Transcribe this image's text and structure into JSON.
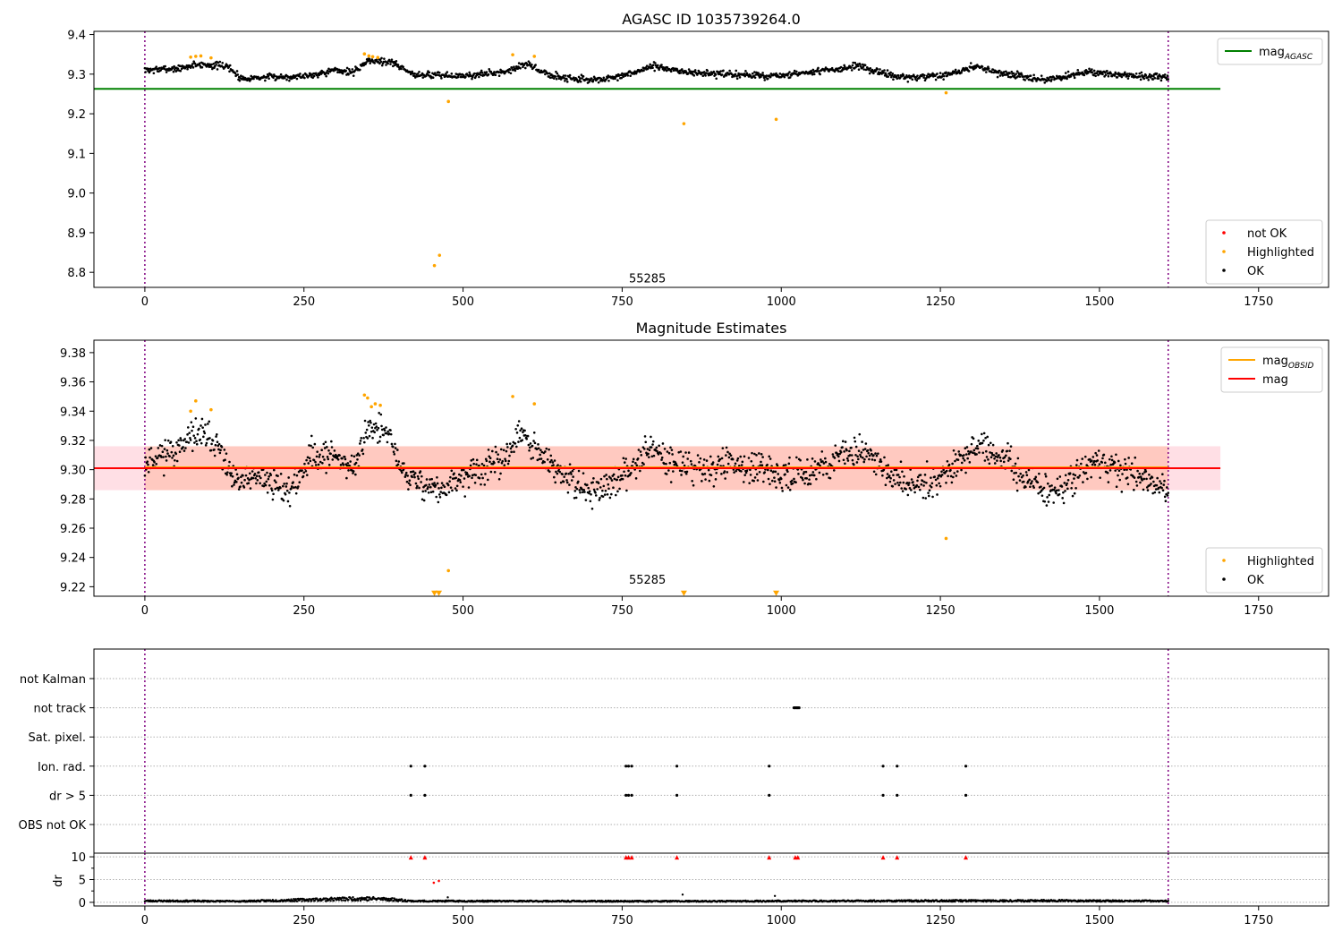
{
  "chart_data": [
    {
      "type": "scatter",
      "title": "AGASC ID 1035739264.0",
      "xlabel": "",
      "ylabel": "",
      "xlim": [
        -80,
        1860
      ],
      "ylim": [
        8.762,
        9.408
      ],
      "xticks": [
        0,
        250,
        500,
        750,
        1000,
        1250,
        1500,
        1750
      ],
      "yticks": [
        8.8,
        8.9,
        9.0,
        9.1,
        9.2,
        9.3,
        9.4
      ],
      "ytick_format": 1,
      "vlines": [
        0,
        1608
      ],
      "annotation": {
        "text": "55285",
        "x": 800,
        "y": 8.786
      },
      "reference_lines": [
        {
          "name": "mag_AGASC",
          "value": 9.263,
          "color": "#008000"
        }
      ],
      "legend_top": {
        "position": "top-right",
        "entries": [
          {
            "label": "mag",
            "sub": "AGASC",
            "kind": "line",
            "color": "#008000"
          }
        ]
      },
      "legend_bottom": {
        "position": "lower-right",
        "entries": [
          {
            "label": "not OK",
            "kind": "marker",
            "color": "#ff0000"
          },
          {
            "label": "Highlighted",
            "kind": "marker",
            "color": "#ffa500"
          },
          {
            "label": "OK",
            "kind": "marker",
            "color": "#000000"
          }
        ]
      },
      "series": [
        {
          "name": "OK",
          "color": "#000000",
          "profile": [
            [
              0,
              9.31
            ],
            [
              60,
              9.315
            ],
            [
              80,
              9.325
            ],
            [
              130,
              9.32
            ],
            [
              150,
              9.29
            ],
            [
              250,
              9.295
            ],
            [
              300,
              9.31
            ],
            [
              330,
              9.305
            ],
            [
              350,
              9.335
            ],
            [
              390,
              9.33
            ],
            [
              420,
              9.3
            ],
            [
              500,
              9.295
            ],
            [
              560,
              9.305
            ],
            [
              600,
              9.325
            ],
            [
              640,
              9.295
            ],
            [
              700,
              9.285
            ],
            [
              740,
              9.29
            ],
            [
              800,
              9.32
            ],
            [
              850,
              9.305
            ],
            [
              900,
              9.3
            ],
            [
              1000,
              9.295
            ],
            [
              1050,
              9.305
            ],
            [
              1120,
              9.32
            ],
            [
              1150,
              9.305
            ],
            [
              1200,
              9.29
            ],
            [
              1250,
              9.295
            ],
            [
              1310,
              9.32
            ],
            [
              1350,
              9.3
            ],
            [
              1420,
              9.285
            ],
            [
              1480,
              9.305
            ],
            [
              1560,
              9.295
            ],
            [
              1608,
              9.29
            ]
          ],
          "spread": 0.011
        },
        {
          "name": "Highlighted",
          "color": "#ffa500",
          "points": [
            [
              72,
              9.343
            ],
            [
              80,
              9.345
            ],
            [
              88,
              9.346
            ],
            [
              104,
              9.341
            ],
            [
              345,
              9.351
            ],
            [
              352,
              9.346
            ],
            [
              358,
              9.344
            ],
            [
              366,
              9.342
            ],
            [
              455,
              8.817
            ],
            [
              463,
              8.843
            ],
            [
              477,
              9.231
            ],
            [
              578,
              9.349
            ],
            [
              612,
              9.345
            ],
            [
              847,
              9.175
            ],
            [
              992,
              9.186
            ],
            [
              1259,
              9.253
            ]
          ]
        },
        {
          "name": "not OK",
          "color": "#ff0000",
          "points": []
        }
      ]
    },
    {
      "type": "scatter",
      "title": "Magnitude Estimates",
      "xlabel": "",
      "ylabel": "",
      "xlim": [
        -80,
        1860
      ],
      "ylim": [
        9.2135,
        9.3885
      ],
      "xticks": [
        0,
        250,
        500,
        750,
        1000,
        1250,
        1500,
        1750
      ],
      "yticks": [
        9.22,
        9.24,
        9.26,
        9.28,
        9.3,
        9.32,
        9.34,
        9.36,
        9.38
      ],
      "ytick_format": 2,
      "vlines": [
        0,
        1608
      ],
      "annotation": {
        "text": "55285",
        "x": 800,
        "y": 9.2195
      },
      "band": {
        "low": 9.286,
        "high": 9.316,
        "color": "#ffc0cb"
      },
      "reference_lines": [
        {
          "name": "mag",
          "value": 9.301,
          "color": "#ff0000"
        }
      ],
      "legend_top": {
        "position": "top-right",
        "entries": [
          {
            "label": "mag",
            "sub": "OBSID",
            "kind": "line",
            "color": "#ffa500"
          },
          {
            "label": "mag",
            "sub": "",
            "kind": "line",
            "color": "#ff0000"
          }
        ]
      },
      "legend_bottom": {
        "position": "lower-right",
        "entries": [
          {
            "label": "Highlighted",
            "kind": "marker",
            "color": "#ffa500"
          },
          {
            "label": "OK",
            "kind": "marker",
            "color": "#000000"
          }
        ]
      },
      "series": [
        {
          "name": "OK",
          "color": "#000000",
          "profile": [
            [
              0,
              9.305
            ],
            [
              20,
              9.31
            ],
            [
              60,
              9.315
            ],
            [
              80,
              9.325
            ],
            [
              110,
              9.32
            ],
            [
              140,
              9.29
            ],
            [
              180,
              9.295
            ],
            [
              230,
              9.285
            ],
            [
              260,
              9.31
            ],
            [
              300,
              9.31
            ],
            [
              330,
              9.3
            ],
            [
              350,
              9.33
            ],
            [
              380,
              9.325
            ],
            [
              410,
              9.295
            ],
            [
              440,
              9.29
            ],
            [
              470,
              9.285
            ],
            [
              500,
              9.295
            ],
            [
              560,
              9.305
            ],
            [
              590,
              9.325
            ],
            [
              620,
              9.31
            ],
            [
              660,
              9.295
            ],
            [
              700,
              9.285
            ],
            [
              740,
              9.29
            ],
            [
              790,
              9.315
            ],
            [
              830,
              9.305
            ],
            [
              880,
              9.3
            ],
            [
              920,
              9.305
            ],
            [
              1000,
              9.295
            ],
            [
              1050,
              9.3
            ],
            [
              1100,
              9.31
            ],
            [
              1130,
              9.315
            ],
            [
              1170,
              9.295
            ],
            [
              1200,
              9.29
            ],
            [
              1250,
              9.295
            ],
            [
              1300,
              9.315
            ],
            [
              1340,
              9.31
            ],
            [
              1380,
              9.295
            ],
            [
              1420,
              9.285
            ],
            [
              1450,
              9.29
            ],
            [
              1490,
              9.305
            ],
            [
              1530,
              9.3
            ],
            [
              1570,
              9.295
            ],
            [
              1608,
              9.285
            ]
          ],
          "spread": 0.013
        },
        {
          "name": "Highlighted",
          "color": "#ffa500",
          "points": [
            [
              72,
              9.34
            ],
            [
              80,
              9.347
            ],
            [
              104,
              9.341
            ],
            [
              345,
              9.351
            ],
            [
              350,
              9.349
            ],
            [
              356,
              9.343
            ],
            [
              362,
              9.345
            ],
            [
              370,
              9.344
            ],
            [
              477,
              9.231
            ],
            [
              578,
              9.35
            ],
            [
              612,
              9.345
            ],
            [
              1259,
              9.253
            ]
          ]
        },
        {
          "name": "Highlighted (off-scale)",
          "color": "#ffa500",
          "marker": "triangle-down",
          "points": [
            [
              455,
              9.2155
            ],
            [
              462,
              9.2155
            ],
            [
              847,
              9.2155
            ],
            [
              992,
              9.2155
            ]
          ]
        }
      ]
    },
    {
      "type": "scatter",
      "title": "",
      "xlabel": "",
      "ylabel": "",
      "xlim": [
        -80,
        1860
      ],
      "xticks": [
        0,
        250,
        500,
        750,
        1000,
        1250,
        1500,
        1750
      ],
      "vlines": [
        0,
        1608
      ],
      "flag_rows": [
        "not Kalman",
        "not track",
        "Sat. pixel.",
        "Ion. rad.",
        "dr > 5",
        "OBS not OK"
      ],
      "flags": {
        "not Kalman": [],
        "not track": [
          1020,
          1022,
          1024,
          1026,
          1028
        ],
        "Sat. pixel.": [],
        "Ion. rad.": [
          418,
          440,
          756,
          760,
          765,
          836,
          981,
          1160,
          1182,
          1290
        ],
        "dr > 5": [
          418,
          440,
          756,
          760,
          765,
          836,
          981,
          1160,
          1182,
          1290
        ],
        "OBS not OK": []
      },
      "dr": {
        "ylabel": "dr",
        "ylim": [
          -0.8,
          10.8
        ],
        "yticks": [
          0,
          5,
          10
        ],
        "clip_value": 10,
        "not_ok_points": [
          [
            418,
            9.8
          ],
          [
            440,
            9.8
          ],
          [
            756,
            9.8
          ],
          [
            760,
            9.8
          ],
          [
            765,
            9.8
          ],
          [
            836,
            9.8
          ],
          [
            981,
            9.8
          ],
          [
            1022,
            9.8
          ],
          [
            1026,
            9.8
          ],
          [
            1160,
            9.8
          ],
          [
            1182,
            9.8
          ],
          [
            1290,
            9.8
          ],
          [
            454,
            4.3
          ],
          [
            462,
            4.7
          ]
        ],
        "ok_profile": [
          [
            0,
            0.35
          ],
          [
            150,
            0.25
          ],
          [
            340,
            0.9
          ],
          [
            380,
            0.8
          ],
          [
            420,
            0.3
          ],
          [
            900,
            0.25
          ],
          [
            1000,
            0.3
          ],
          [
            1400,
            0.4
          ],
          [
            1608,
            0.3
          ]
        ],
        "ok_extra": [
          [
            476,
            1.1
          ],
          [
            845,
            1.7
          ],
          [
            990,
            1.4
          ]
        ]
      }
    }
  ]
}
